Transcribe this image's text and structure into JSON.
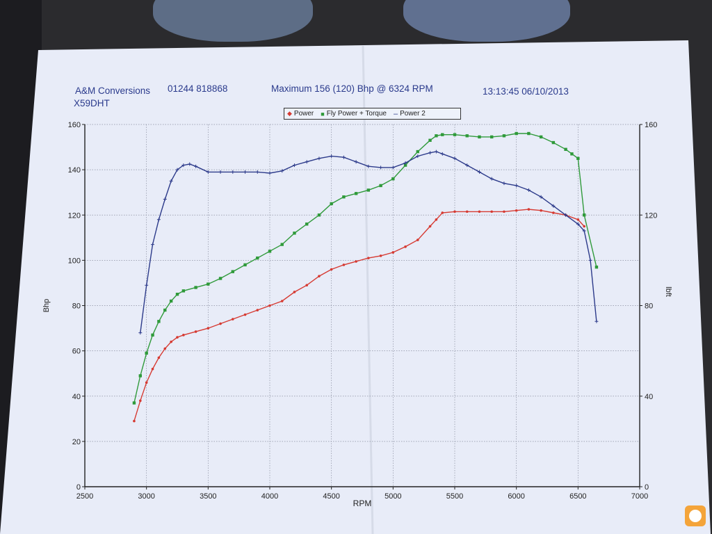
{
  "header": {
    "company": "A&M Conversions",
    "phone": "01244 818868",
    "maximum": "Maximum 156 (120) Bhp @ 6324 RPM",
    "timestamp": "13:13:45 06/10/2013",
    "vehicle": "X59DHT"
  },
  "legend": {
    "power": "Power",
    "fly_power_torque": "Fly Power + Torque",
    "power2": "Power 2"
  },
  "colors": {
    "power": "#d63a32",
    "fly_power": "#2f9a3a",
    "torque": "#2c3a8a",
    "grid": "#8a8fa0",
    "axis": "#222222"
  },
  "chart_data": {
    "type": "line",
    "title": "",
    "xlabel": "RPM",
    "ylabel": "Bhp",
    "ylabel_right": "lbft",
    "xlim": [
      2500,
      7000
    ],
    "ylim": [
      0,
      160
    ],
    "ylim_right": [
      0,
      160
    ],
    "x_ticks": [
      2500,
      3000,
      3500,
      4000,
      4500,
      5000,
      5500,
      6000,
      6500,
      7000
    ],
    "y_ticks": [
      0,
      20,
      40,
      60,
      80,
      100,
      120,
      140,
      160
    ],
    "y_ticks_right": [
      0,
      40,
      80,
      120,
      160
    ],
    "grid": true,
    "legend_position": "top-center",
    "series": [
      {
        "name": "Power",
        "color": "#d63a32",
        "axis": "left",
        "x": [
          2900,
          2950,
          3000,
          3050,
          3100,
          3150,
          3200,
          3250,
          3300,
          3400,
          3500,
          3600,
          3700,
          3800,
          3900,
          4000,
          4100,
          4200,
          4300,
          4400,
          4500,
          4600,
          4700,
          4800,
          4900,
          5000,
          5100,
          5200,
          5300,
          5350,
          5400,
          5500,
          5600,
          5700,
          5800,
          5900,
          6000,
          6100,
          6200,
          6300,
          6400,
          6500,
          6550
        ],
        "y": [
          29,
          38,
          46,
          52,
          57,
          61,
          64,
          66,
          67,
          68.5,
          70,
          72,
          74,
          76,
          78,
          80,
          82,
          86,
          89,
          93,
          96,
          98,
          99.5,
          101,
          102,
          103.5,
          106,
          109,
          115,
          118,
          121,
          121.5,
          121.5,
          121.5,
          121.5,
          121.5,
          122,
          122.5,
          122,
          121,
          120,
          118,
          115
        ]
      },
      {
        "name": "Fly Power + Torque",
        "color": "#2f9a3a",
        "axis": "left",
        "x": [
          2900,
          2950,
          3000,
          3050,
          3100,
          3150,
          3200,
          3250,
          3300,
          3400,
          3500,
          3600,
          3700,
          3800,
          3900,
          4000,
          4100,
          4200,
          4300,
          4400,
          4500,
          4600,
          4700,
          4800,
          4900,
          5000,
          5100,
          5200,
          5300,
          5350,
          5400,
          5500,
          5600,
          5700,
          5800,
          5900,
          6000,
          6100,
          6200,
          6300,
          6400,
          6450,
          6500,
          6550,
          6650
        ],
        "y": [
          37,
          49,
          59,
          67,
          73,
          78,
          82,
          85,
          86.5,
          88,
          89.5,
          92,
          95,
          98,
          101,
          104,
          107,
          112,
          116,
          120,
          125,
          128,
          129.5,
          131,
          133,
          136,
          142,
          148,
          153,
          155,
          155.5,
          155.5,
          155,
          154.5,
          154.5,
          155,
          156,
          156,
          154.5,
          152,
          149,
          147,
          145,
          120,
          97
        ]
      },
      {
        "name": "Power 2",
        "color": "#2c3a8a",
        "axis": "right",
        "x": [
          2950,
          3000,
          3050,
          3100,
          3150,
          3200,
          3250,
          3300,
          3350,
          3400,
          3500,
          3600,
          3700,
          3800,
          3900,
          4000,
          4100,
          4200,
          4300,
          4400,
          4500,
          4600,
          4700,
          4800,
          4900,
          5000,
          5100,
          5200,
          5300,
          5350,
          5400,
          5500,
          5600,
          5700,
          5800,
          5900,
          6000,
          6100,
          6200,
          6300,
          6400,
          6500,
          6550,
          6600,
          6650
        ],
        "y": [
          68,
          89,
          107,
          118,
          127,
          135,
          140,
          142,
          142.5,
          141.5,
          139,
          139,
          139,
          139,
          139,
          138.5,
          139.5,
          142,
          143.5,
          145,
          146,
          145.5,
          143.5,
          141.5,
          141,
          141,
          143,
          146,
          147.5,
          148,
          147,
          145,
          142,
          139,
          136,
          134,
          133,
          131,
          128,
          124,
          120,
          116,
          113,
          100,
          73
        ]
      }
    ]
  }
}
